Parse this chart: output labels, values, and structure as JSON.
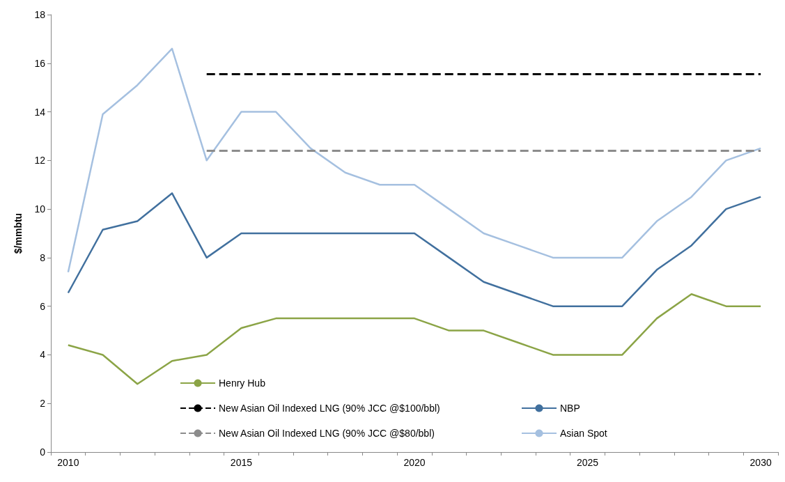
{
  "chart_data": {
    "type": "line",
    "ylabel": "$/mmbtu",
    "categories": [
      "2010",
      null,
      null,
      null,
      null,
      "2015",
      null,
      null,
      null,
      null,
      "2020",
      null,
      null,
      null,
      null,
      "2025",
      null,
      null,
      null,
      null,
      "2030"
    ],
    "ylim": [
      0,
      18
    ],
    "yticks": [
      0,
      2,
      4,
      6,
      8,
      10,
      12,
      14,
      16,
      18
    ],
    "grid": false,
    "legend": "bottom",
    "marker": "none",
    "series": [
      {
        "name": "Henry Hub",
        "color": "#8ba446",
        "line_style": "solid",
        "values": [
          4.4,
          4.0,
          2.8,
          3.75,
          4.0,
          5.1,
          5.5,
          5.5,
          5.5,
          5.5,
          5.5,
          5.0,
          5.0,
          4.5,
          4.0,
          4.0,
          4.0,
          5.5,
          6.5,
          6.0,
          6.0
        ]
      },
      {
        "name": "NBP",
        "color": "#41709e",
        "line_style": "solid",
        "values": [
          6.55,
          9.15,
          9.5,
          10.65,
          8.0,
          9.0,
          9.0,
          9.0,
          9.0,
          9.0,
          9.0,
          8.0,
          7.0,
          6.5,
          6.0,
          6.0,
          6.0,
          7.5,
          8.5,
          10.0,
          10.5
        ]
      },
      {
        "name": "New Asian Oil Indexed LNG (90% JCC @$100/bbl)",
        "color": "#000000",
        "line_style": "dashed",
        "values": [
          null,
          null,
          null,
          null,
          15.55,
          15.55,
          15.55,
          15.55,
          15.55,
          15.55,
          15.55,
          15.55,
          15.55,
          15.55,
          15.55,
          15.55,
          15.55,
          15.55,
          15.55,
          15.55,
          15.55
        ]
      },
      {
        "name": "Asian Spot",
        "color": "#a5c0e0",
        "line_style": "solid",
        "values": [
          7.4,
          13.9,
          15.1,
          16.6,
          12.0,
          14.0,
          14.0,
          12.5,
          11.5,
          11.0,
          11.0,
          10.0,
          9.0,
          8.5,
          8.0,
          8.0,
          8.0,
          9.5,
          10.5,
          12.0,
          12.5
        ]
      },
      {
        "name": "New Asian Oil Indexed LNG (90% JCC @$80/bbl)",
        "color": "#8c8c8c",
        "line_style": "dashed",
        "values": [
          null,
          null,
          null,
          null,
          12.4,
          12.4,
          12.4,
          12.4,
          12.4,
          12.4,
          12.4,
          12.4,
          12.4,
          12.4,
          12.4,
          12.4,
          12.4,
          12.4,
          12.4,
          12.4,
          12.4
        ]
      }
    ]
  }
}
